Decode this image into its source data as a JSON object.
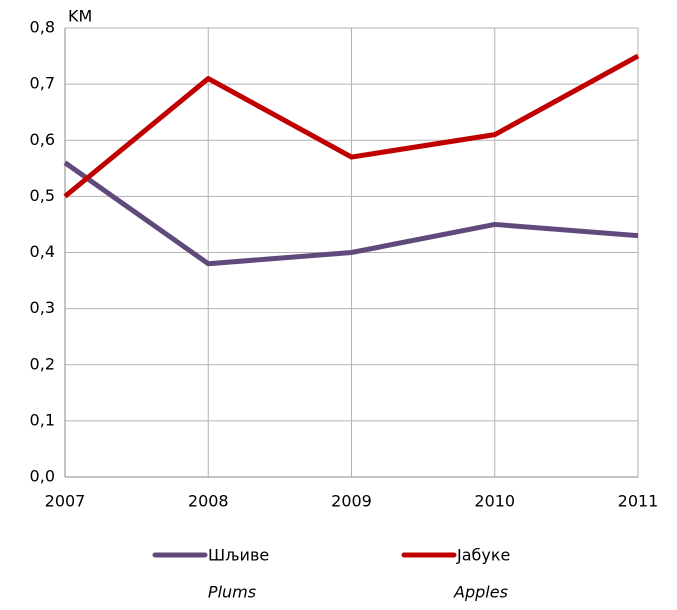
{
  "chart_data": {
    "type": "line",
    "y_unit": "KM",
    "x": [
      2007,
      2008,
      2009,
      2010,
      2011
    ],
    "xlim": [
      2007,
      2011
    ],
    "xticks": [
      2007,
      2008,
      2009,
      2010,
      2011
    ],
    "ylim": [
      0,
      0.8
    ],
    "yticks": [
      {
        "value": 0,
        "label": "0,0"
      },
      {
        "value": 0.1,
        "label": "0,1"
      },
      {
        "value": 0.2,
        "label": "0,2"
      },
      {
        "value": 0.3,
        "label": "0,3"
      },
      {
        "value": 0.4,
        "label": "0,4"
      },
      {
        "value": 0.5,
        "label": "0,5"
      },
      {
        "value": 0.6,
        "label": "0,6"
      },
      {
        "value": 0.7,
        "label": "0,7"
      },
      {
        "value": 0.8,
        "label": "0,8"
      }
    ],
    "grid": true,
    "series": [
      {
        "name": "Шљиве",
        "legend_note": "Plums",
        "color": "#604a7b",
        "values": [
          0.56,
          0.38,
          0.4,
          0.45,
          0.43
        ]
      },
      {
        "name": "Јабуке",
        "legend_note": "Apples",
        "color": "#c00000",
        "values": [
          0.5,
          0.71,
          0.57,
          0.61,
          0.75
        ]
      }
    ],
    "legend": "bottom"
  }
}
